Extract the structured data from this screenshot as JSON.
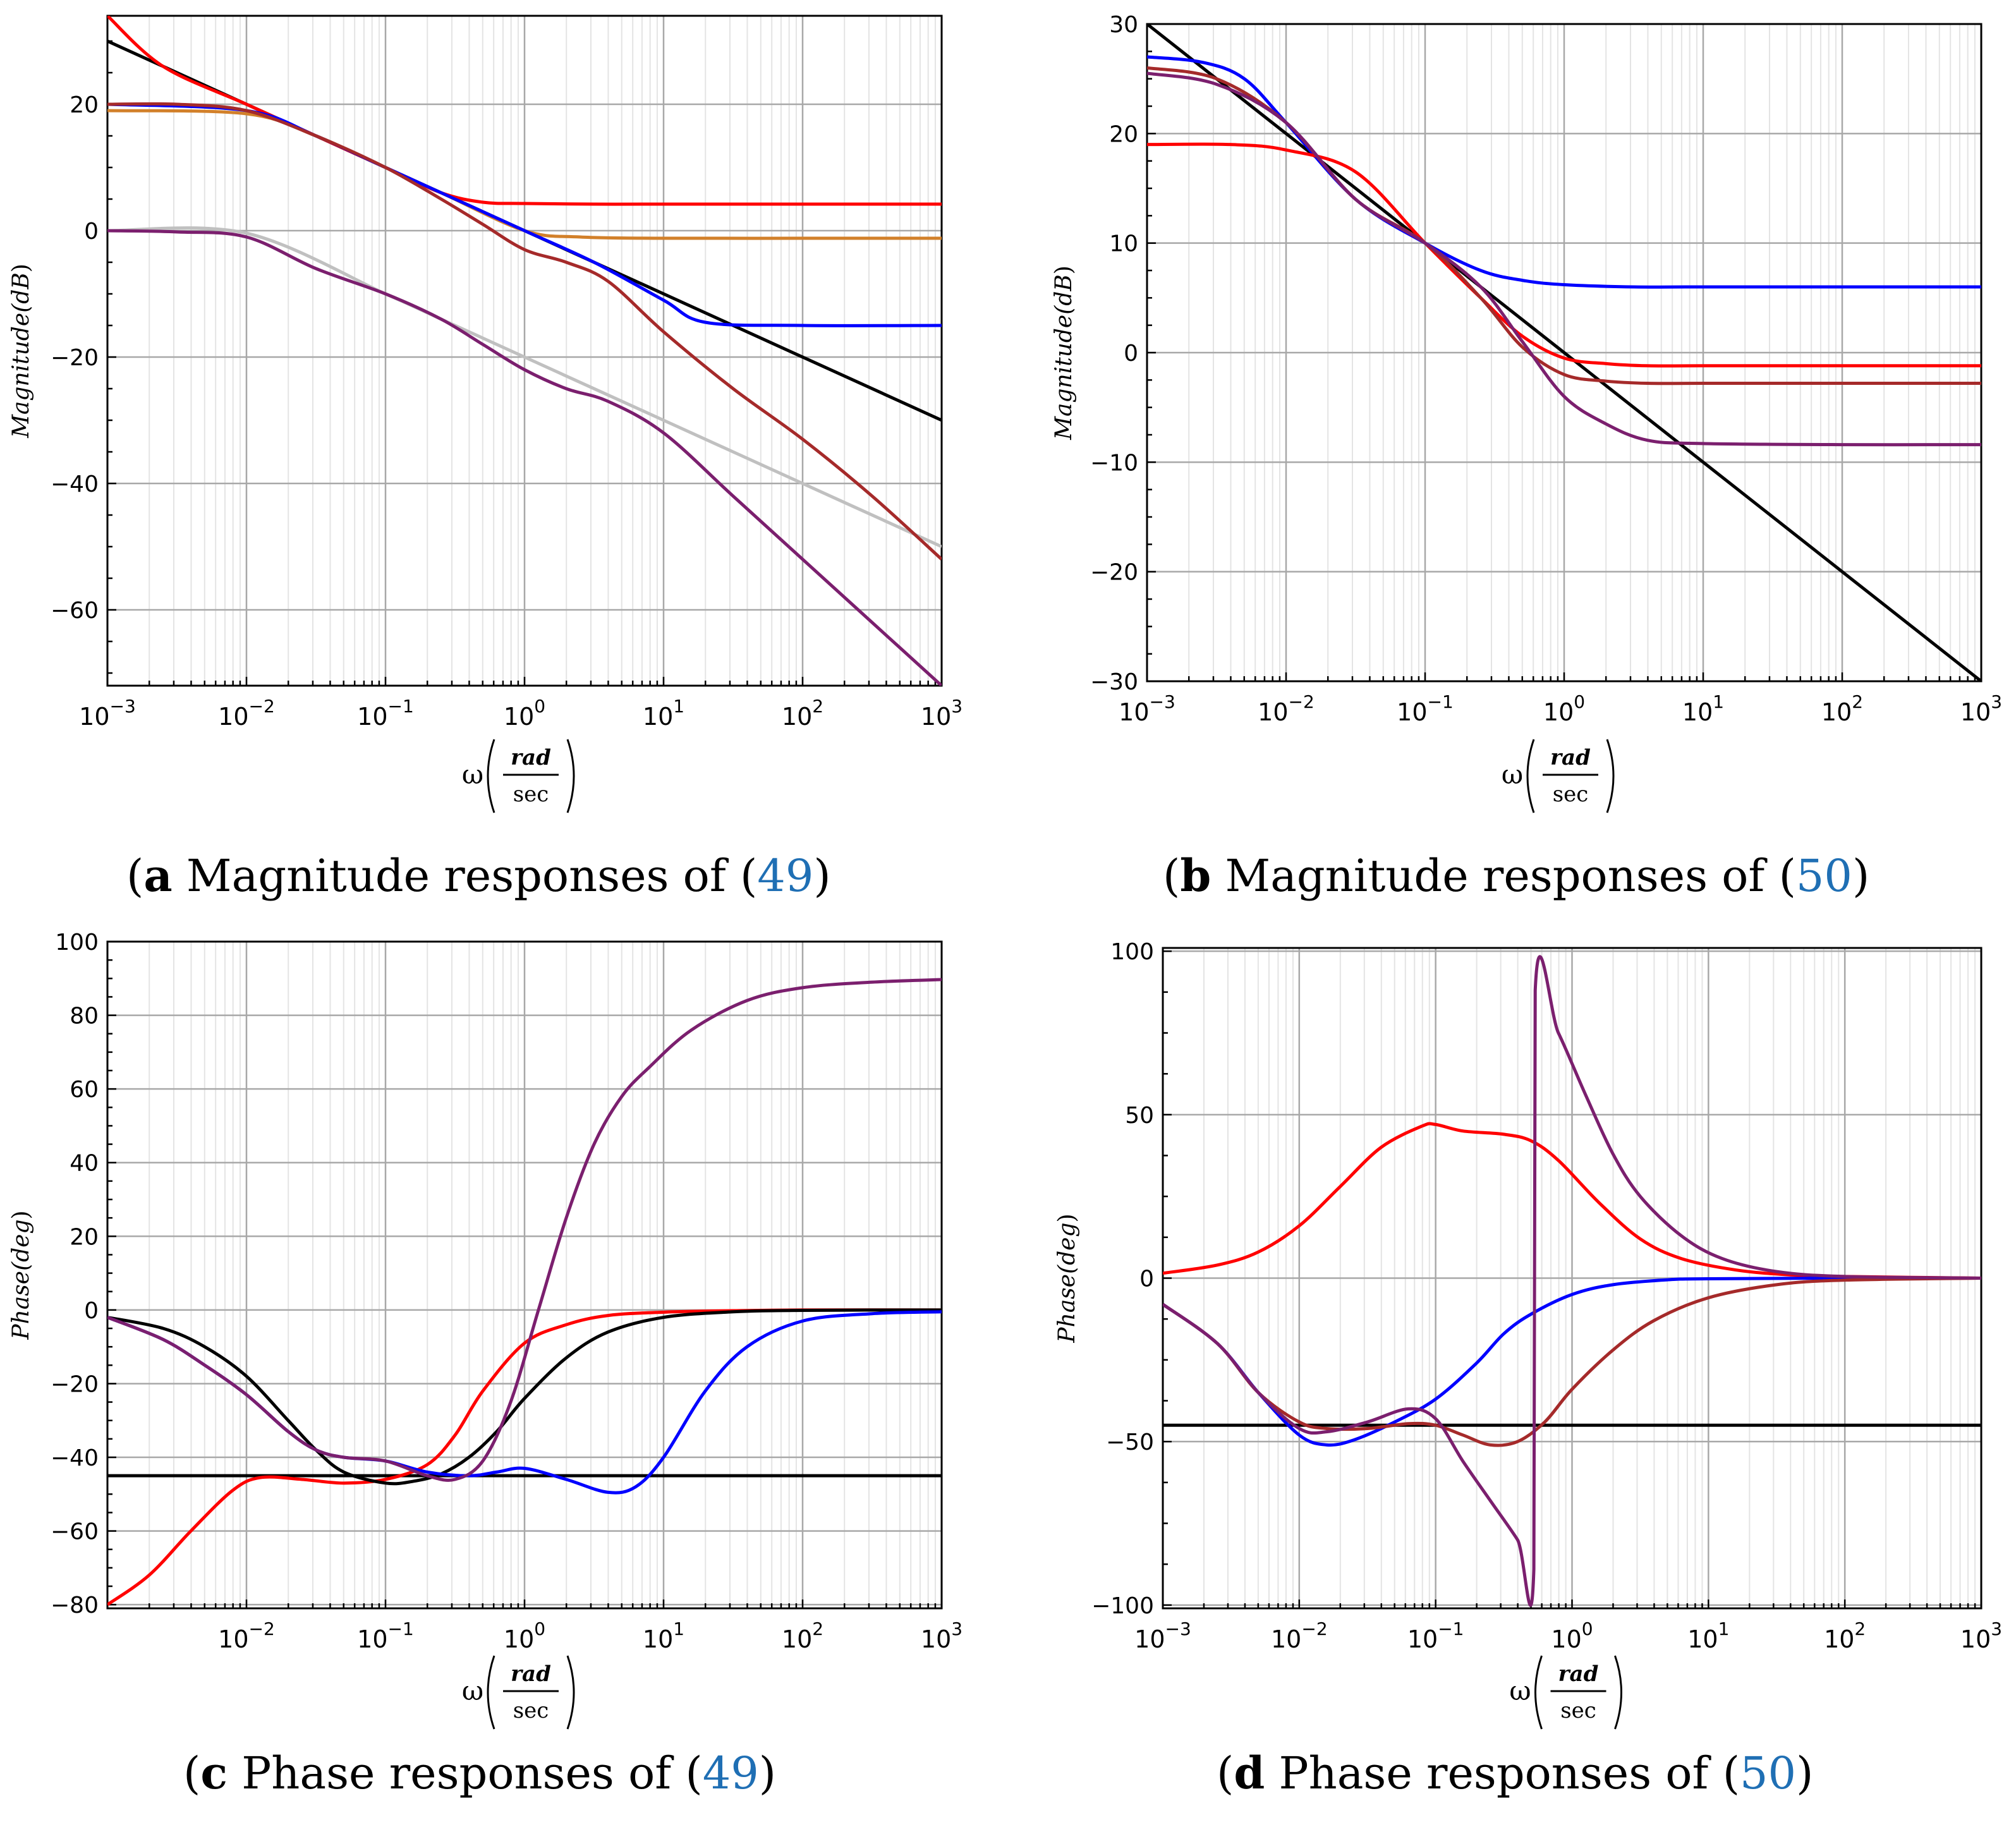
{
  "figure": {
    "x_axis_symbol": "ω",
    "x_axis_unit_numerator": "rad",
    "x_axis_unit_denominator": "sec"
  },
  "captions": [
    {
      "tag": "a",
      "text": " Magnitude responses of (",
      "ref": "49",
      "close": ")"
    },
    {
      "tag": "b",
      "text": " Magnitude responses of (",
      "ref": "50",
      "close": ")"
    },
    {
      "tag": "c",
      "text": " Phase responses of (",
      "ref": "49",
      "close": ")"
    },
    {
      "tag": "d",
      "text": " Phase responses of (",
      "ref": "50",
      "close": ")"
    }
  ],
  "colors": {
    "black": "#000000",
    "red": "#ff0000",
    "blue": "#0000ff",
    "brown": "#a52a2a",
    "orange": "#d2802a",
    "purple": "#7b1f6e",
    "gray": "#c0c0c0",
    "ref_color": "#1f6fb4"
  },
  "chart_data": [
    {
      "id": "a",
      "type": "line",
      "title": "Magnitude responses of (49)",
      "ylabel_main": "Magnitude",
      "ylabel_unit": "dB",
      "xscale": "log",
      "xlim": [
        -3,
        3
      ],
      "ylim": [
        -72,
        34
      ],
      "yticks": [
        -60,
        -40,
        -20,
        0,
        20
      ],
      "ytick_labels": [
        "−60",
        "−40",
        "−20",
        "0",
        "20"
      ],
      "xticks": [
        -3,
        -2,
        -1,
        0,
        1,
        2,
        3
      ],
      "series": [
        {
          "color": "gray",
          "x": [
            -3,
            -2,
            -1,
            -0.6,
            0,
            1,
            2,
            3
          ],
          "y": [
            0,
            -0.4,
            -10,
            -14,
            -20,
            -30,
            -40,
            -50
          ]
        },
        {
          "color": "black",
          "x": [
            -3,
            3
          ],
          "y": [
            30,
            -30
          ]
        },
        {
          "color": "red",
          "x": [
            -3,
            -2.6,
            -2,
            -1.5,
            -1,
            -0.6,
            -0.3,
            0,
            0.5,
            1,
            2,
            3
          ],
          "y": [
            34,
            26,
            20,
            15,
            10,
            6,
            4.5,
            4.3,
            4.2,
            4.2,
            4.2,
            4.2
          ]
        },
        {
          "color": "orange",
          "x": [
            -3,
            -2,
            -1.5,
            -1,
            -0.6,
            0,
            0.4,
            1,
            2,
            3
          ],
          "y": [
            19,
            18.5,
            15,
            10,
            6,
            0,
            -1,
            -1.2,
            -1.2,
            -1.2
          ]
        },
        {
          "color": "blue",
          "x": [
            -3,
            -2,
            -1.5,
            -1,
            -0.6,
            0,
            0.5,
            1,
            1.3,
            2,
            3
          ],
          "y": [
            20,
            19,
            15,
            10,
            6,
            0,
            -5,
            -11,
            -14.5,
            -15,
            -15
          ]
        },
        {
          "color": "brown",
          "x": [
            -3,
            -2.5,
            -2,
            -1.5,
            -1,
            -0.6,
            -0.3,
            0,
            0.3,
            0.6,
            1,
            1.5,
            2,
            2.5,
            3
          ],
          "y": [
            20,
            20,
            19,
            15,
            10,
            5,
            1,
            -3,
            -5,
            -8,
            -16,
            -25,
            -33,
            -42,
            -52
          ]
        },
        {
          "color": "purple",
          "x": [
            -3,
            -2.5,
            -2,
            -1.5,
            -1,
            -0.6,
            -0.3,
            0,
            0.3,
            0.6,
            1,
            1.5,
            2,
            2.5,
            3
          ],
          "y": [
            0,
            -0.2,
            -1,
            -6,
            -10,
            -14,
            -18,
            -22,
            -25,
            -27,
            -32,
            -42,
            -52,
            -62,
            -72
          ]
        }
      ]
    },
    {
      "id": "b",
      "type": "line",
      "title": "Magnitude responses of (50)",
      "ylabel_main": "Magnitude",
      "ylabel_unit": "dB",
      "xscale": "log",
      "xlim": [
        -3,
        3
      ],
      "ylim": [
        -30,
        30
      ],
      "yticks": [
        -30,
        -20,
        -10,
        0,
        10,
        20,
        30
      ],
      "ytick_labels": [
        "−30",
        "−20",
        "−10",
        "0",
        "10",
        "20",
        "30"
      ],
      "xticks": [
        -3,
        -2,
        -1,
        0,
        1,
        2,
        3
      ],
      "series": [
        {
          "color": "black",
          "x": [
            -3,
            3
          ],
          "y": [
            30,
            -30
          ]
        },
        {
          "color": "blue",
          "x": [
            -3,
            -2.6,
            -2.3,
            -2,
            -1.5,
            -1,
            -0.6,
            -0.3,
            0,
            0.5,
            1,
            2,
            3
          ],
          "y": [
            27,
            26.5,
            25,
            21,
            14,
            10,
            7.5,
            6.6,
            6.2,
            6,
            6,
            6,
            6
          ]
        },
        {
          "color": "red",
          "x": [
            -3,
            -2.4,
            -2,
            -1.5,
            -1,
            -0.6,
            -0.3,
            0,
            0.3,
            0.6,
            1,
            2,
            3
          ],
          "y": [
            19,
            19,
            18.5,
            16.5,
            10,
            5,
            1.5,
            -0.5,
            -1,
            -1.2,
            -1.2,
            -1.2,
            -1.2
          ]
        },
        {
          "color": "brown",
          "x": [
            -3,
            -2.5,
            -2,
            -1.5,
            -1,
            -0.6,
            -0.3,
            0,
            0.3,
            0.6,
            1,
            2,
            3
          ],
          "y": [
            26,
            25,
            21,
            14,
            10,
            5,
            0.5,
            -2,
            -2.6,
            -2.8,
            -2.8,
            -2.8,
            -2.8
          ]
        },
        {
          "color": "purple",
          "x": [
            -3,
            -2.5,
            -2,
            -1.5,
            -1,
            -0.6,
            -0.3,
            0,
            0.3,
            0.6,
            1,
            2,
            3
          ],
          "y": [
            25.5,
            24.5,
            21,
            14,
            10,
            6,
            1,
            -4,
            -6.5,
            -8,
            -8.3,
            -8.4,
            -8.4
          ]
        }
      ]
    },
    {
      "id": "c",
      "type": "line",
      "title": "Phase responses of (49)",
      "ylabel_main": "Phase",
      "ylabel_unit": "deg",
      "xscale": "log",
      "xlim": [
        -3,
        3
      ],
      "ylim": [
        -81,
        100
      ],
      "yticks": [
        -80,
        -60,
        -40,
        -20,
        0,
        20,
        40,
        60,
        80,
        100
      ],
      "ytick_labels": [
        "−80",
        "−60",
        "−40",
        "−20",
        "0",
        "20",
        "40",
        "60",
        "80",
        "100"
      ],
      "xticks": [
        -2,
        -1,
        0,
        1,
        2,
        3
      ],
      "series": [
        {
          "color": "black",
          "x": [
            -3,
            3
          ],
          "y": [
            -45,
            -45
          ]
        },
        {
          "color": "red",
          "x": [
            -3,
            -2.7,
            -2.4,
            -2.1,
            -1.9,
            -1.6,
            -1.3,
            -1,
            -0.7,
            -0.5,
            -0.3,
            0,
            0.3,
            0.6,
            1,
            1.5,
            2,
            3
          ],
          "y": [
            -80,
            -72,
            -60,
            -49,
            -45.5,
            -46,
            -47,
            -46,
            -42,
            -34,
            -22,
            -9,
            -4,
            -1.5,
            -0.6,
            -0.2,
            0,
            0
          ]
        },
        {
          "color": "black",
          "x": [
            -3,
            -2.6,
            -2.3,
            -2,
            -1.7,
            -1.5,
            -1.3,
            -1,
            -0.8,
            -0.6,
            -0.4,
            -0.2,
            0,
            0.3,
            0.6,
            1,
            1.5,
            2,
            3
          ],
          "y": [
            -2,
            -5,
            -10,
            -18,
            -30,
            -38,
            -44,
            -47,
            -46.5,
            -44.5,
            -40,
            -33,
            -24,
            -13,
            -6,
            -2,
            -0.5,
            -0.1,
            0
          ]
        },
        {
          "color": "blue",
          "x": [
            -3,
            -2.6,
            -2.3,
            -2,
            -1.7,
            -1.5,
            -1.3,
            -1,
            -0.7,
            -0.4,
            -0.2,
            0,
            0.3,
            0.6,
            0.8,
            1,
            1.3,
            1.6,
            2,
            2.5,
            3
          ],
          "y": [
            -2,
            -8,
            -15,
            -23,
            -33,
            -38,
            -40,
            -41,
            -44,
            -45,
            -44,
            -43,
            -46,
            -49.5,
            -48,
            -40,
            -22,
            -10,
            -3,
            -1,
            -0.5
          ]
        },
        {
          "color": "purple",
          "x": [
            -3,
            -2.6,
            -2.3,
            -2,
            -1.7,
            -1.5,
            -1.3,
            -1,
            -0.7,
            -0.5,
            -0.3,
            -0.1,
            0.1,
            0.3,
            0.5,
            0.7,
            0.9,
            1.2,
            1.6,
            2,
            2.5,
            3
          ],
          "y": [
            -2,
            -8,
            -15,
            -23,
            -33,
            -38,
            -40,
            -41,
            -45,
            -46,
            -41,
            -25,
            0,
            25,
            45,
            58,
            66,
            76,
            84,
            87.5,
            89,
            89.7
          ]
        }
      ]
    },
    {
      "id": "d",
      "type": "line",
      "title": "Phase responses of (50)",
      "ylabel_main": "Phase",
      "ylabel_unit": "deg",
      "xscale": "log",
      "xlim": [
        -3,
        3
      ],
      "ylim": [
        -101,
        101
      ],
      "yticks": [
        -100,
        -50,
        0,
        50,
        100
      ],
      "ytick_labels": [
        "−100",
        "−50",
        "0",
        "50",
        "100"
      ],
      "xticks": [
        -3,
        -2,
        -1,
        0,
        1,
        2,
        3
      ],
      "series": [
        {
          "color": "black",
          "x": [
            -3,
            3
          ],
          "y": [
            -45,
            -45
          ]
        },
        {
          "color": "red",
          "x": [
            -3,
            -2.6,
            -2.3,
            -2,
            -1.7,
            -1.4,
            -1.1,
            -1,
            -0.8,
            -0.5,
            -0.3,
            -0.1,
            0.2,
            0.5,
            0.8,
            1.2,
            1.6,
            2,
            3
          ],
          "y": [
            1.5,
            4,
            8,
            16,
            28,
            40,
            46.5,
            47,
            45,
            44,
            42,
            36,
            23,
            12,
            6,
            2.5,
            1,
            0.5,
            0
          ]
        },
        {
          "color": "blue",
          "x": [
            -3,
            -2.6,
            -2.3,
            -2,
            -1.8,
            -1.6,
            -1.3,
            -1,
            -0.7,
            -0.5,
            -0.3,
            0,
            0.3,
            0.7,
            1,
            2,
            3
          ],
          "y": [
            -8,
            -20,
            -35,
            -48,
            -51,
            -49.5,
            -44,
            -37,
            -26,
            -17,
            -11,
            -5,
            -2,
            -0.5,
            -0.2,
            0,
            0
          ]
        },
        {
          "color": "brown",
          "x": [
            -3,
            -2.6,
            -2.3,
            -2,
            -1.8,
            -1.5,
            -1.2,
            -1,
            -0.8,
            -0.6,
            -0.4,
            -0.2,
            0,
            0.3,
            0.6,
            1,
            1.5,
            2,
            3
          ],
          "y": [
            -8,
            -20,
            -35,
            -44,
            -46,
            -46,
            -44.5,
            -45,
            -48,
            -51,
            -50,
            -44,
            -34,
            -22,
            -13,
            -6,
            -2,
            -0.6,
            0
          ]
        },
        {
          "color": "purple",
          "x": [
            -3,
            -2.6,
            -2.3,
            -2,
            -1.8,
            -1.5,
            -1.2,
            -1,
            -0.8,
            -0.6,
            -0.4,
            -0.28,
            -0.27,
            -0.1,
            0.1,
            0.3,
            0.5,
            0.8,
            1.1,
            1.5,
            2,
            3
          ],
          "y": [
            -8,
            -20,
            -35,
            -46,
            -47,
            -44,
            -40,
            -43,
            -56,
            -68,
            -80,
            -89,
            88,
            75,
            56,
            38,
            25,
            13,
            6,
            2,
            0.5,
            0
          ]
        }
      ]
    }
  ]
}
